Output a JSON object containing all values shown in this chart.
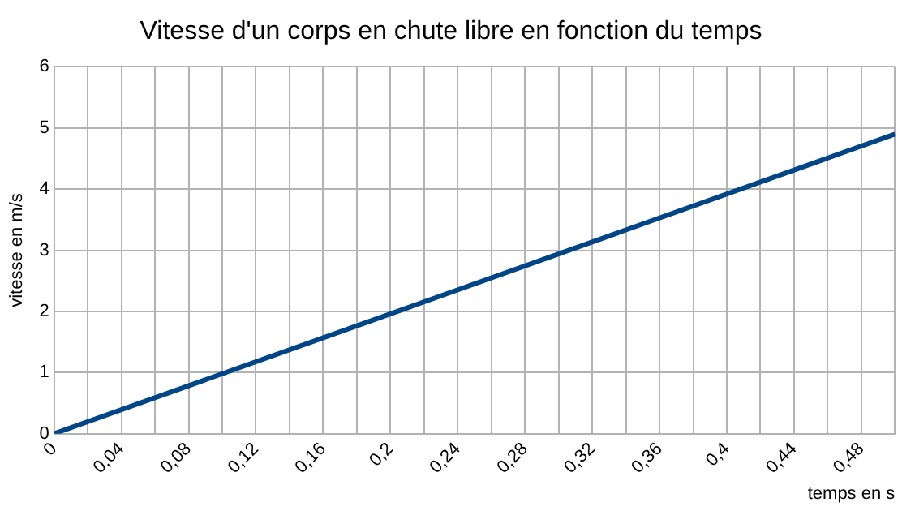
{
  "chart_data": {
    "type": "line",
    "title": "Vitesse d'un corps en chute libre en fonction du temps",
    "xlabel": "temps en s",
    "ylabel": "vitesse en m/s",
    "x": [
      0,
      0.5
    ],
    "series": [
      {
        "color": "#004586",
        "values": [
          0,
          4.9
        ]
      }
    ],
    "xlim": [
      0,
      0.5
    ],
    "xticks": [
      {
        "value": 0,
        "label": "0"
      },
      {
        "value": 0.02,
        "label": null
      },
      {
        "value": 0.04,
        "label": "0,04"
      },
      {
        "value": 0.06,
        "label": null
      },
      {
        "value": 0.08,
        "label": "0,08"
      },
      {
        "value": 0.1,
        "label": null
      },
      {
        "value": 0.12,
        "label": "0,12"
      },
      {
        "value": 0.14,
        "label": null
      },
      {
        "value": 0.16,
        "label": "0,16"
      },
      {
        "value": 0.18,
        "label": null
      },
      {
        "value": 0.2,
        "label": "0,2"
      },
      {
        "value": 0.22,
        "label": null
      },
      {
        "value": 0.24,
        "label": "0,24"
      },
      {
        "value": 0.26,
        "label": null
      },
      {
        "value": 0.28,
        "label": "0,28"
      },
      {
        "value": 0.3,
        "label": null
      },
      {
        "value": 0.32,
        "label": "0,32"
      },
      {
        "value": 0.34,
        "label": null
      },
      {
        "value": 0.36,
        "label": "0,36"
      },
      {
        "value": 0.38,
        "label": null
      },
      {
        "value": 0.4,
        "label": "0,4"
      },
      {
        "value": 0.42,
        "label": null
      },
      {
        "value": 0.44,
        "label": "0,44"
      },
      {
        "value": 0.46,
        "label": null
      },
      {
        "value": 0.48,
        "label": "0,48"
      },
      {
        "value": 0.5,
        "label": null
      }
    ],
    "ylim": [
      0,
      6
    ],
    "yticks": [
      0,
      1,
      2,
      3,
      4,
      5,
      6
    ],
    "grid": true,
    "legend": false,
    "marker": "none",
    "line_style": "solid"
  }
}
